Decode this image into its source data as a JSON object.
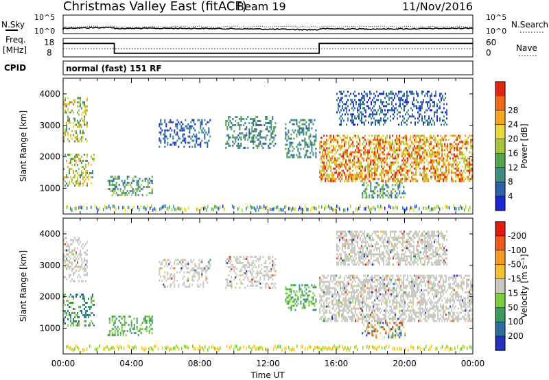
{
  "header": {
    "station": "Christmas Valley East (fitACF)",
    "beam": "Beam 19",
    "date": "11/Nov/2016"
  },
  "status_panel": {
    "nsky_label": "N.Sky",
    "nsky_ticks": [
      "10^5",
      "10^0"
    ],
    "nsearch_label": "N.Search",
    "nsearch_ticks": [
      "10^5",
      "10^0"
    ],
    "freq_label_line1": "Freq.",
    "freq_label_line2": "[MHz]",
    "freq_ticks": [
      "18",
      "8"
    ],
    "nave_label": "Nave",
    "nave_ticks": [
      "60",
      "0"
    ],
    "cpid_label": "CPID",
    "cpid_value": "normal (fast) 151 RF",
    "freq_step_hours": [
      0,
      3,
      15,
      24
    ],
    "freq_levels_fraction": [
      0.78,
      0.18,
      0.78
    ]
  },
  "chart_data": [
    {
      "type": "heatmap",
      "title": "",
      "parameter": "Power",
      "xlabel": "",
      "ylabel": "Slant Range [km]",
      "xlim": [
        0,
        24
      ],
      "ylim": [
        180,
        4500
      ],
      "yticks": [
        "1000",
        "2000",
        "3000",
        "4000"
      ],
      "colorbar_label": "Power [dB]",
      "colorbar_ticks": [
        "4",
        "8",
        "12",
        "16",
        "20",
        "24",
        "28"
      ],
      "colorbar_colors": [
        "#1e27d8",
        "#2d62a8",
        "#3c8f7f",
        "#56a64f",
        "#a6c33a",
        "#e8d93c",
        "#f5a623",
        "#ef6a18",
        "#e32612"
      ],
      "regions": [
        {
          "x": [
            0.0,
            1.4
          ],
          "y": [
            2500,
            3900
          ],
          "level": "mid-high"
        },
        {
          "x": [
            0.0,
            1.8
          ],
          "y": [
            1100,
            2100
          ],
          "level": "mid-high"
        },
        {
          "x": [
            2.6,
            5.2
          ],
          "y": [
            800,
            1400
          ],
          "level": "mid"
        },
        {
          "x": [
            5.6,
            8.6
          ],
          "y": [
            2300,
            3200
          ],
          "level": "low"
        },
        {
          "x": [
            9.5,
            12.4
          ],
          "y": [
            2300,
            3300
          ],
          "level": "low-mid"
        },
        {
          "x": [
            13.0,
            14.8
          ],
          "y": [
            2000,
            3200
          ],
          "level": "low-mid"
        },
        {
          "x": [
            15.0,
            24.0
          ],
          "y": [
            1200,
            2700
          ],
          "level": "high"
        },
        {
          "x": [
            16.0,
            22.5
          ],
          "y": [
            3000,
            4100
          ],
          "level": "low"
        },
        {
          "x": [
            17.5,
            20.0
          ],
          "y": [
            700,
            1200
          ],
          "level": "mid"
        }
      ]
    },
    {
      "type": "heatmap",
      "title": "",
      "parameter": "Velocity",
      "xlabel": "Time UT",
      "ylabel": "Slant Range [km]",
      "xlim": [
        0,
        24
      ],
      "ylim": [
        180,
        4500
      ],
      "xticks": [
        "00:00",
        "04:00",
        "08:00",
        "12:00",
        "16:00",
        "20:00",
        "00:00"
      ],
      "yticks": [
        "1000",
        "2000",
        "3000",
        "4000"
      ],
      "colorbar_label": "Velocity [m s⁻¹]",
      "colorbar_ticks": [
        "200",
        "100",
        "50",
        "15",
        "-15",
        "-50",
        "-100",
        "-200"
      ],
      "colorbar_colors": [
        "#2430c0",
        "#2e6e9e",
        "#3c9a64",
        "#7ccf3c",
        "#c8c8c0",
        "#f1c232",
        "#f59a23",
        "#ef5a18",
        "#e31a12"
      ],
      "regions": [
        {
          "x": [
            0.0,
            1.4
          ],
          "y": [
            2500,
            3900
          ],
          "level": "ground"
        },
        {
          "x": [
            0.0,
            1.8
          ],
          "y": [
            1100,
            2100
          ],
          "level": "positive"
        },
        {
          "x": [
            2.6,
            5.2
          ],
          "y": [
            800,
            1400
          ],
          "level": "positive-low"
        },
        {
          "x": [
            5.6,
            8.6
          ],
          "y": [
            2300,
            3200
          ],
          "level": "ground"
        },
        {
          "x": [
            9.5,
            12.4
          ],
          "y": [
            2300,
            3300
          ],
          "level": "ground"
        },
        {
          "x": [
            13.0,
            14.8
          ],
          "y": [
            1600,
            2400
          ],
          "level": "positive-low"
        },
        {
          "x": [
            15.0,
            24.0
          ],
          "y": [
            1200,
            2700
          ],
          "level": "ground"
        },
        {
          "x": [
            16.0,
            22.5
          ],
          "y": [
            3000,
            4100
          ],
          "level": "ground"
        },
        {
          "x": [
            17.5,
            20.0
          ],
          "y": [
            700,
            1200
          ],
          "level": "mixed"
        }
      ]
    }
  ]
}
